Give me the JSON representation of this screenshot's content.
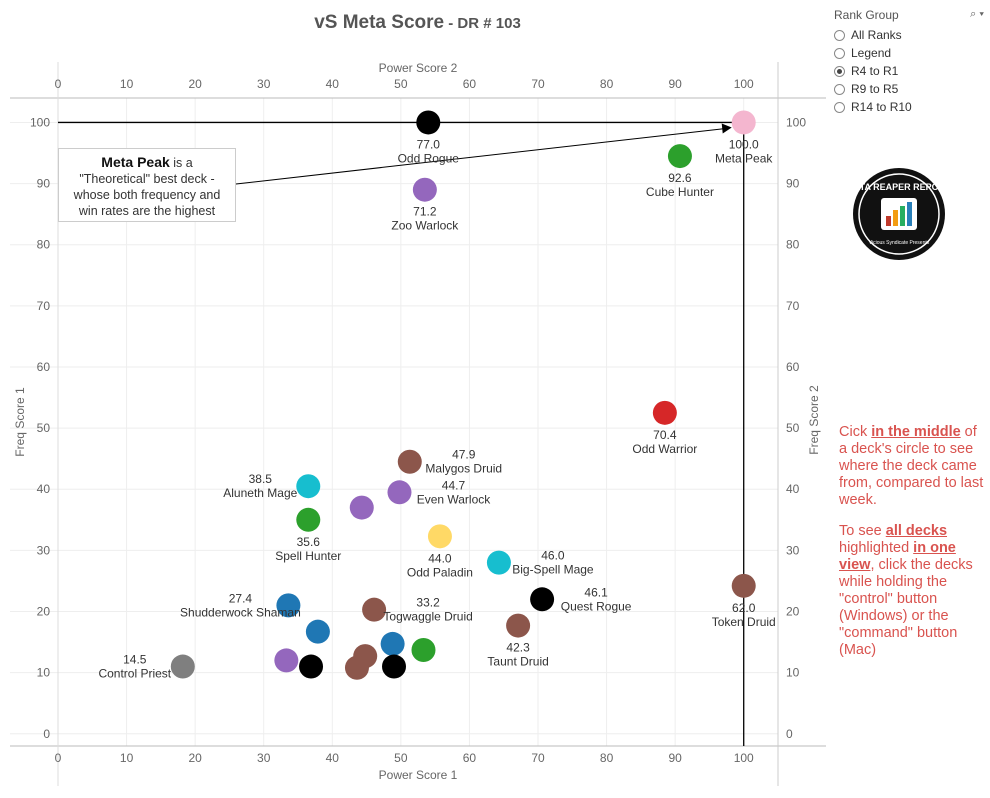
{
  "title": {
    "main": "vS Meta Score",
    "sub": " - DR # 103"
  },
  "rank_group": {
    "label": "Rank Group",
    "options": [
      {
        "label": "All Ranks",
        "selected": false
      },
      {
        "label": "Legend",
        "selected": false
      },
      {
        "label": "R4 to R1",
        "selected": true
      },
      {
        "label": "R9 to R5",
        "selected": false
      },
      {
        "label": "R14 to R10",
        "selected": false
      }
    ]
  },
  "callout": {
    "strong": "Meta Peak",
    "rest1": " is a",
    "rest2": "\"Theoretical\" best deck -",
    "rest3": "whose both frequency and",
    "rest4": "win rates are the highest"
  },
  "note": {
    "p1_a": "Cick ",
    "p1_b": "in the middle",
    "p1_c": " of a deck's circle to see where the deck came from, compared to last week.",
    "p2_a": "To see ",
    "p2_b": "all decks ",
    "p2_c": " highlighted ",
    "p2_d": "in one view",
    "p2_e": ", click the decks while holding the \"control\" button (Windows) or the \"command\" button (Mac)"
  },
  "logo": {
    "text": "DATA REAPER REPORT",
    "sub": "Vicious Syndicate Presents"
  },
  "chart_data": {
    "type": "scatter",
    "xlabel": "Power Score 1",
    "x2label": "Power Score 2",
    "ylabel": "Freq Score 1",
    "y2label": "Freq Score 2",
    "xlim": [
      0,
      105
    ],
    "ylim": [
      -2,
      104
    ],
    "xticks": [
      0,
      10,
      20,
      30,
      40,
      50,
      60,
      70,
      80,
      90,
      100
    ],
    "yticks": [
      0,
      10,
      20,
      30,
      40,
      50,
      60,
      70,
      80,
      90,
      100
    ],
    "reference_lines": {
      "x": 100,
      "y": 100
    },
    "points": [
      {
        "x": 100.0,
        "y": 100.0,
        "color": "#f4b6cf",
        "score": "100.0",
        "name": "Meta Peak"
      },
      {
        "x": 54.0,
        "y": 100.0,
        "color": "#000000",
        "score": "77.0",
        "name": "Odd Rogue"
      },
      {
        "x": 90.7,
        "y": 94.5,
        "color": "#2ca02c",
        "score": "92.6",
        "name": "Cube Hunter"
      },
      {
        "x": 53.5,
        "y": 89.0,
        "color": "#9467bd",
        "score": "71.2",
        "name": "Zoo Warlock"
      },
      {
        "x": 88.5,
        "y": 52.5,
        "color": "#d62728",
        "score": "70.4",
        "name": "Odd Warrior"
      },
      {
        "x": 51.3,
        "y": 44.5,
        "color": "#8c564b",
        "score": "47.9",
        "name": "Malygos Druid"
      },
      {
        "x": 36.5,
        "y": 40.5,
        "color": "#17becf",
        "score": "38.5",
        "name": "Aluneth Mage"
      },
      {
        "x": 49.8,
        "y": 39.5,
        "color": "#9467bd",
        "score": "44.7",
        "name": "Even Warlock"
      },
      {
        "x": 44.3,
        "y": 37.0,
        "color": "#9467bd",
        "score": "",
        "name": ""
      },
      {
        "x": 36.5,
        "y": 35.0,
        "color": "#2ca02c",
        "score": "35.6",
        "name": "Spell Hunter"
      },
      {
        "x": 55.7,
        "y": 32.3,
        "color": "#ffd966",
        "score": "44.0",
        "name": "Odd Paladin"
      },
      {
        "x": 64.3,
        "y": 28.0,
        "color": "#17becf",
        "score": "46.0",
        "name": "Big-Spell Mage"
      },
      {
        "x": 100.0,
        "y": 24.2,
        "color": "#8c564b",
        "score": "62.0",
        "name": "Token Druid"
      },
      {
        "x": 70.6,
        "y": 22.0,
        "color": "#000000",
        "score": "46.1",
        "name": "Quest Rogue"
      },
      {
        "x": 33.6,
        "y": 21.0,
        "color": "#1f77b4",
        "score": "27.4",
        "name": "Shudderwock Shaman"
      },
      {
        "x": 46.1,
        "y": 20.3,
        "color": "#8c564b",
        "score": "33.2",
        "name": "Togwaggle Druid"
      },
      {
        "x": 67.1,
        "y": 17.7,
        "color": "#8c564b",
        "score": "42.3",
        "name": "Taunt Druid"
      },
      {
        "x": 37.9,
        "y": 16.7,
        "color": "#1f77b4",
        "score": "",
        "name": ""
      },
      {
        "x": 48.8,
        "y": 14.7,
        "color": "#1f77b4",
        "score": "",
        "name": ""
      },
      {
        "x": 53.3,
        "y": 13.7,
        "color": "#2ca02c",
        "score": "",
        "name": ""
      },
      {
        "x": 44.8,
        "y": 12.7,
        "color": "#8c564b",
        "score": "",
        "name": ""
      },
      {
        "x": 33.3,
        "y": 12.0,
        "color": "#9467bd",
        "score": "",
        "name": ""
      },
      {
        "x": 18.2,
        "y": 11.0,
        "color": "#7f7f7f",
        "score": "14.5",
        "name": "Control Priest"
      },
      {
        "x": 36.9,
        "y": 11.0,
        "color": "#000000",
        "score": "",
        "name": ""
      },
      {
        "x": 43.6,
        "y": 10.8,
        "color": "#8c564b",
        "score": "",
        "name": ""
      },
      {
        "x": 49.0,
        "y": 11.0,
        "color": "#000000",
        "score": "",
        "name": ""
      }
    ]
  }
}
